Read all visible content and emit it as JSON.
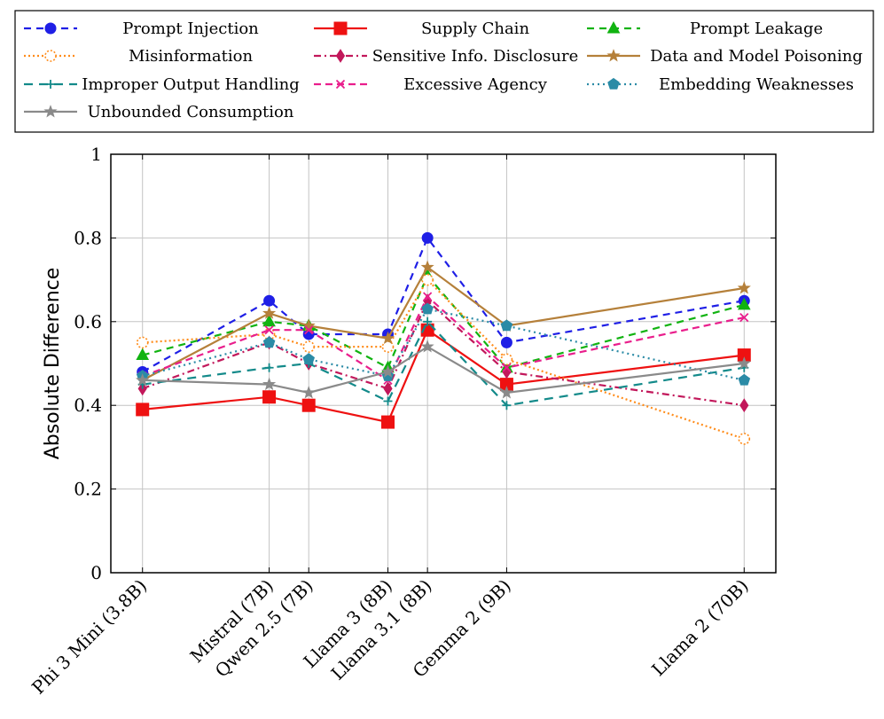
{
  "chart_data": {
    "type": "line",
    "title": "",
    "xlabel": "",
    "ylabel": "Absolute Difference",
    "ylim": [
      0,
      1
    ],
    "yticks": [
      0,
      0.2,
      0.4,
      0.6,
      0.8,
      1
    ],
    "ytick_labels": [
      "0",
      "0.2",
      "0.4",
      "0.6",
      "0.8",
      "1"
    ],
    "grid": true,
    "legend_position": "top",
    "categories": [
      "Phi 3 Mini (3.8B)",
      "Mistral (7B)",
      "Qwen 2.5 (7B)",
      "Llama 3 (8B)",
      "Llama 3.1 (8B)",
      "Gemma 2 (9B)",
      "Llama 2 (70B)"
    ],
    "x": [
      3.8,
      7,
      8,
      10,
      11,
      13,
      19
    ],
    "series": [
      {
        "name": "Prompt Injection",
        "color": "#1f1fe6",
        "dash": "8,6",
        "marker": "circle",
        "values": [
          0.48,
          0.65,
          0.57,
          0.57,
          0.8,
          0.55,
          0.65
        ]
      },
      {
        "name": "Supply Chain",
        "color": "#ee1111",
        "dash": "",
        "marker": "square",
        "values": [
          0.39,
          0.42,
          0.4,
          0.36,
          0.58,
          0.45,
          0.52
        ]
      },
      {
        "name": "Prompt Leakage",
        "color": "#11b311",
        "dash": "8,6",
        "marker": "triangle",
        "values": [
          0.52,
          0.6,
          0.59,
          0.49,
          0.71,
          0.49,
          0.64
        ]
      },
      {
        "name": "Misinformation",
        "color": "#ff8c1a",
        "dash": "2,3",
        "marker": "circle-open",
        "values": [
          0.55,
          0.57,
          0.54,
          0.54,
          0.7,
          0.51,
          0.32
        ]
      },
      {
        "name": "Sensitive Info. Disclosure",
        "color": "#c2185b",
        "dash": "8,4,2,4",
        "marker": "diamond",
        "values": [
          0.44,
          0.55,
          0.5,
          0.44,
          0.65,
          0.48,
          0.4
        ]
      },
      {
        "name": "Data and Model Poisoning",
        "color": "#b5803a",
        "dash": "",
        "marker": "star",
        "values": [
          0.46,
          0.62,
          0.59,
          0.56,
          0.73,
          0.59,
          0.68
        ]
      },
      {
        "name": "Improper Output Handling",
        "color": "#138a8a",
        "dash": "10,7",
        "marker": "plus",
        "values": [
          0.45,
          0.49,
          0.5,
          0.41,
          0.6,
          0.4,
          0.49
        ]
      },
      {
        "name": "Excessive Agency",
        "color": "#e91e8c",
        "dash": "8,5",
        "marker": "x",
        "values": [
          0.47,
          0.58,
          0.58,
          0.46,
          0.66,
          0.49,
          0.61
        ]
      },
      {
        "name": "Embedding Weaknesses",
        "color": "#2b8ba6",
        "dash": "2,4",
        "marker": "pentagon",
        "values": [
          0.47,
          0.55,
          0.51,
          0.47,
          0.63,
          0.59,
          0.46
        ]
      },
      {
        "name": "Unbounded Consumption",
        "color": "#8a8a8a",
        "dash": "",
        "marker": "star",
        "values": [
          0.46,
          0.45,
          0.43,
          0.48,
          0.54,
          0.43,
          0.5
        ]
      }
    ]
  }
}
